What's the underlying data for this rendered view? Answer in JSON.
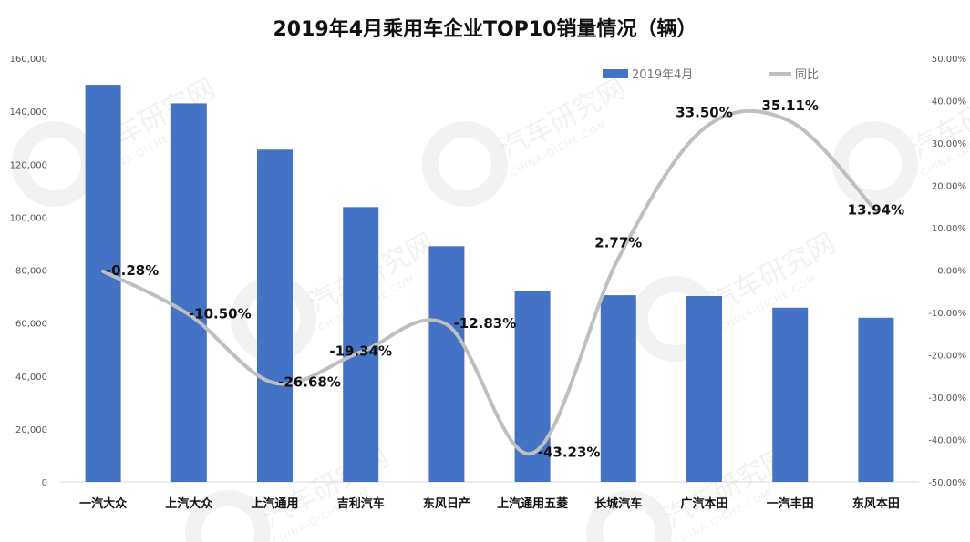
{
  "chart_data": {
    "type": "bar",
    "title": "2019年4月乘用车企业TOP10销量情况（辆）",
    "categories": [
      "一汽大众",
      "上汽大众",
      "上汽通用",
      "吉利汽车",
      "东风日产",
      "上汽通用五菱",
      "长城汽车",
      "广汽本田",
      "一汽丰田",
      "东风本田"
    ],
    "series": [
      {
        "name": "2019年4月",
        "type": "bar",
        "axis": "left",
        "color": "#4472C4",
        "values": [
          150000,
          143000,
          125500,
          103800,
          89000,
          72000,
          70500,
          70200,
          65800,
          62000
        ]
      },
      {
        "name": "同比",
        "type": "line",
        "axis": "right",
        "color": "#BFBFBF",
        "values": [
          -0.28,
          -10.5,
          -26.68,
          -19.34,
          -12.83,
          -43.23,
          2.77,
          33.5,
          35.11,
          13.94
        ],
        "labels": [
          "-0.28%",
          "-10.50%",
          "-26.68%",
          "-19.34%",
          "-12.83%",
          "-43.23%",
          "2.77%",
          "33.50%",
          "35.11%",
          "13.94%"
        ]
      }
    ],
    "y_left": {
      "min": 0,
      "max": 160000,
      "ticks": [
        "0",
        "20,000",
        "40,000",
        "60,000",
        "80,000",
        "100,000",
        "120,000",
        "140,000",
        "160,000"
      ]
    },
    "y_right": {
      "min": -50,
      "max": 50,
      "ticks": [
        "-50.00%",
        "-40.00%",
        "-30.00%",
        "-20.00%",
        "-10.00%",
        "0.00%",
        "10.00%",
        "20.00%",
        "30.00%",
        "40.00%",
        "50.00%"
      ]
    },
    "legend_position": "top-right",
    "grid": false,
    "watermark": {
      "text": "汽车研究网",
      "subtext": "CHINA-QICHE.COM"
    }
  }
}
